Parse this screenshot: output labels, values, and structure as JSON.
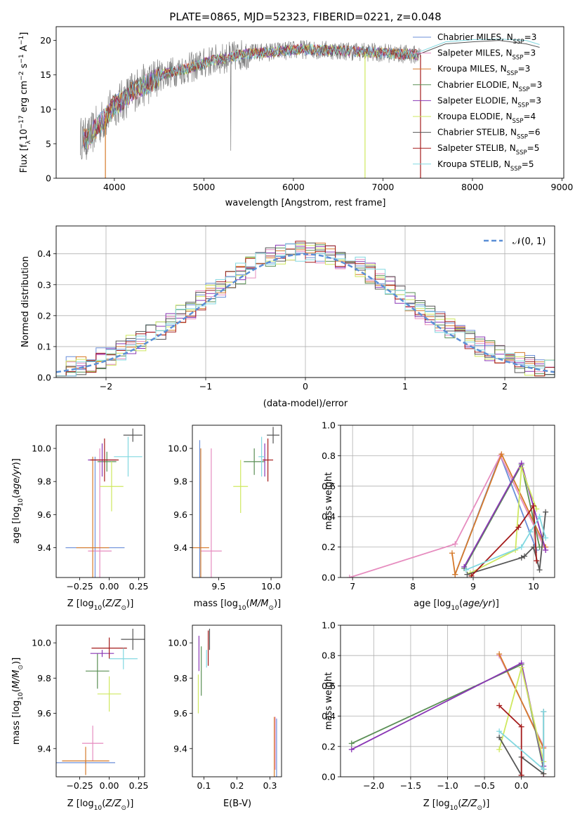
{
  "colors": {
    "Chabrier MILES": "#6b8fd9",
    "Salpeter MILES": "#e68cbf",
    "Kroupa MILES": "#d67a2a",
    "Chabrier ELODIE": "#5a8f55",
    "Salpeter ELODIE": "#8a37b5",
    "Kroupa ELODIE": "#cfe85f",
    "Chabrier STELIB": "#555555",
    "Salpeter STELIB": "#a51c1c",
    "Kroupa STELIB": "#82d8e0",
    "normal": "#5b8fd6"
  },
  "chart_data": [
    {
      "id": "spectrum",
      "type": "line",
      "title": "PLATE=0865, MJD=52323, FIBERID=0221, z=0.048",
      "xlabel": "wavelength [Angstrom, rest frame]",
      "ylabel": "Flux [f_λ10^-17 erg cm^-2 s^-1 A^-1]",
      "xlim": [
        3350,
        9020
      ],
      "ylim": [
        0,
        22
      ],
      "xticks": [
        4000,
        5000,
        6000,
        7000,
        8000,
        9000
      ],
      "yticks": [
        0,
        5,
        10,
        15,
        20
      ],
      "legend_position": "top-right",
      "legend": [
        {
          "model": "Chabrier MILES",
          "label": "Chabrier MILES, N",
          "sub": "SSP",
          "n": "=3"
        },
        {
          "model": "Salpeter MILES",
          "label": "Salpeter MILES, N",
          "sub": "SSP",
          "n": "=3"
        },
        {
          "model": "Kroupa MILES",
          "label": "Kroupa MILES, N",
          "sub": "SSP",
          "n": "=3"
        },
        {
          "model": "Chabrier ELODIE",
          "label": "Chabrier ELODIE, N",
          "sub": "SSP",
          "n": "=3"
        },
        {
          "model": "Salpeter ELODIE",
          "label": "Salpeter ELODIE, N",
          "sub": "SSP",
          "n": "=3"
        },
        {
          "model": "Kroupa ELODIE",
          "label": "Kroupa ELODIE, N",
          "sub": "SSP",
          "n": "=4"
        },
        {
          "model": "Chabrier STELIB",
          "label": "Chabrier STELIB, N",
          "sub": "SSP",
          "n": "=6"
        },
        {
          "model": "Salpeter STELIB",
          "label": "Salpeter STELIB, N",
          "sub": "SSP",
          "n": "=5"
        },
        {
          "model": "Kroupa STELIB",
          "label": "Kroupa STELIB, N",
          "sub": "SSP",
          "n": "=5"
        }
      ],
      "continuum": {
        "wavelength": [
          3600,
          3700,
          3800,
          3900,
          4000,
          4100,
          4200,
          4300,
          4400,
          4500,
          4700,
          4900,
          5100,
          5300,
          5500,
          5800,
          6100,
          6400,
          6700,
          7000,
          7400
        ],
        "flux": [
          6.0,
          5.6,
          7.4,
          8.8,
          10.6,
          11.3,
          12.6,
          13.3,
          13.9,
          14.9,
          15.6,
          16.2,
          17.1,
          17.6,
          18.1,
          18.4,
          18.7,
          18.6,
          18.4,
          18.2,
          17.9
        ]
      },
      "models_end": [
        {
          "model": "Kroupa STELIB",
          "wavelength": [
            7400,
            7700,
            8000,
            8300,
            8600,
            8750
          ],
          "flux": [
            18.3,
            19.8,
            20.1,
            20.2,
            20.0,
            19.4
          ]
        },
        {
          "model": "Chabrier STELIB",
          "wavelength": [
            7400,
            7700,
            8000,
            8300,
            8600,
            8750
          ],
          "flux": [
            18.0,
            19.5,
            19.8,
            20.0,
            19.5,
            19.0
          ]
        }
      ],
      "dropouts": [
        {
          "model": "Kroupa MILES",
          "wavelength": 3900
        },
        {
          "model": "Kroupa ELODIE",
          "wavelength": 6800
        },
        {
          "model": "Salpeter STELIB",
          "wavelength": 7420
        }
      ]
    },
    {
      "id": "residuals",
      "type": "line",
      "xlabel": "(data-model)/error",
      "ylabel": "Normed distribution",
      "xlim": [
        -2.5,
        2.5
      ],
      "ylim": [
        0,
        0.49
      ],
      "xticks": [
        -2,
        -1,
        0,
        1,
        2
      ],
      "yticks": [
        0.0,
        0.1,
        0.2,
        0.3,
        0.4
      ],
      "legend_position": "top-right",
      "legend": {
        "label": "𝒩(0, 1)"
      },
      "bin_width": 0.1
    },
    {
      "id": "age-vs-Z",
      "type": "scatter",
      "xlabel": "Z [log10(Z/Z⊙)]",
      "ylabel": "age  [log10(age/yr)]",
      "xlim": [
        -0.45,
        0.3
      ],
      "ylim": [
        9.22,
        10.14
      ],
      "xticks": [
        -0.25,
        0.0,
        0.25
      ],
      "yticks": [
        9.4,
        9.6,
        9.8,
        10.0
      ],
      "points": [
        {
          "model": "Chabrier MILES",
          "x": -0.12,
          "y": 9.4,
          "xerr": 0.25,
          "yerr": 0.55
        },
        {
          "model": "Salpeter MILES",
          "x": -0.08,
          "y": 9.38,
          "xerr": 0.1,
          "yerr": 0.62
        },
        {
          "model": "Kroupa MILES",
          "x": -0.14,
          "y": 9.4,
          "xerr": 0.14,
          "yerr": 0.55
        },
        {
          "model": "Chabrier ELODIE",
          "x": -0.02,
          "y": 9.92,
          "xerr": 0.08,
          "yerr": 0.06
        },
        {
          "model": "Salpeter ELODIE",
          "x": -0.06,
          "y": 9.93,
          "xerr": 0.12,
          "yerr": 0.1
        },
        {
          "model": "Kroupa ELODIE",
          "x": 0.02,
          "y": 9.77,
          "xerr": 0.1,
          "yerr": 0.15
        },
        {
          "model": "Chabrier STELIB",
          "x": 0.2,
          "y": 10.08,
          "xerr": 0.08,
          "yerr": 0.04
        },
        {
          "model": "Salpeter STELIB",
          "x": -0.04,
          "y": 9.93,
          "xerr": 0.12,
          "yerr": 0.13
        },
        {
          "model": "Kroupa STELIB",
          "x": 0.16,
          "y": 9.95,
          "xerr": 0.12,
          "yerr": 0.12
        }
      ]
    },
    {
      "id": "age-vs-mass",
      "type": "scatter",
      "xlabel": "mass [log10(M/M⊙)]",
      "xlim": [
        9.25,
        10.1
      ],
      "ylim": [
        9.22,
        10.14
      ],
      "xticks": [
        9.5,
        10.0
      ],
      "yticks": [
        9.4,
        9.6,
        9.8,
        10.0
      ],
      "points": [
        {
          "model": "Chabrier MILES",
          "x": 9.32,
          "y": 9.4,
          "xerr": 0.01,
          "yerr": 0.65
        },
        {
          "model": "Salpeter MILES",
          "x": 9.43,
          "y": 9.38,
          "xerr": 0.1,
          "yerr": 0.62
        },
        {
          "model": "Kroupa MILES",
          "x": 9.33,
          "y": 9.4,
          "xerr": 0.08,
          "yerr": 0.6
        },
        {
          "model": "Chabrier ELODIE",
          "x": 9.84,
          "y": 9.92,
          "xerr": 0.1,
          "yerr": 0.08
        },
        {
          "model": "Salpeter ELODIE",
          "x": 9.94,
          "y": 9.93,
          "xerr": 0.02,
          "yerr": 0.1
        },
        {
          "model": "Kroupa ELODIE",
          "x": 9.71,
          "y": 9.77,
          "xerr": 0.07,
          "yerr": 0.16
        },
        {
          "model": "Chabrier STELIB",
          "x": 10.02,
          "y": 10.08,
          "xerr": 0.06,
          "yerr": 0.05
        },
        {
          "model": "Salpeter STELIB",
          "x": 9.97,
          "y": 9.93,
          "xerr": 0.05,
          "yerr": 0.13
        },
        {
          "model": "Kroupa STELIB",
          "x": 9.91,
          "y": 9.95,
          "xerr": 0.03,
          "yerr": 0.12
        }
      ]
    },
    {
      "id": "mass-weight-vs-age",
      "type": "line",
      "xlabel": "age  [log10(age/yr)]",
      "ylabel": "mass weight",
      "xlim": [
        6.8,
        10.35
      ],
      "ylim": [
        0,
        1.0
      ],
      "xticks": [
        7,
        8,
        9,
        10
      ],
      "yticks": [
        0.0,
        0.2,
        0.4,
        0.6,
        0.8,
        1.0
      ],
      "series": [
        {
          "model": "Chabrier MILES",
          "x": [
            8.7,
            9.45,
            10.05
          ],
          "y": [
            0.02,
            0.8,
            0.18
          ]
        },
        {
          "model": "Salpeter MILES",
          "x": [
            6.95,
            8.7,
            9.45,
            10.2
          ],
          "y": [
            0.0,
            0.22,
            0.8,
            0.18
          ]
        },
        {
          "model": "Kroupa MILES",
          "x": [
            8.65,
            8.7,
            9.47,
            10.2
          ],
          "y": [
            0.16,
            0.02,
            0.81,
            0.2
          ]
        },
        {
          "model": "Chabrier ELODIE",
          "x": [
            8.85,
            9.8,
            10.1
          ],
          "y": [
            0.06,
            0.74,
            0.2
          ]
        },
        {
          "model": "Salpeter ELODIE",
          "x": [
            8.85,
            9.8,
            10.2
          ],
          "y": [
            0.07,
            0.75,
            0.18
          ]
        },
        {
          "model": "Kroupa ELODIE",
          "x": [
            8.95,
            9.7,
            9.8,
            10.05
          ],
          "y": [
            0.03,
            0.18,
            0.72,
            0.45
          ]
        },
        {
          "model": "Chabrier STELIB",
          "x": [
            8.9,
            9.8,
            9.85,
            10.0,
            10.1,
            10.2
          ],
          "y": [
            0.02,
            0.13,
            0.14,
            0.2,
            0.05,
            0.43
          ]
        },
        {
          "model": "Salpeter STELIB",
          "x": [
            8.97,
            9.75,
            10.0,
            10.05
          ],
          "y": [
            0.01,
            0.33,
            0.47,
            0.11
          ]
        },
        {
          "model": "Kroupa STELIB",
          "x": [
            8.88,
            9.8,
            9.95,
            10.1,
            10.2
          ],
          "y": [
            0.05,
            0.2,
            0.3,
            0.4,
            0.26
          ]
        }
      ]
    },
    {
      "id": "mass-vs-Z",
      "type": "scatter",
      "xlabel": "Z [log10(Z/Z⊙)]",
      "ylabel": "mass [log10(M/M⊙)]",
      "xlim": [
        -0.45,
        0.3
      ],
      "ylim": [
        9.24,
        10.1
      ],
      "xticks": [
        -0.25,
        0.0,
        0.25
      ],
      "yticks": [
        9.4,
        9.6,
        9.8,
        10.0
      ],
      "points": [
        {
          "model": "Chabrier MILES",
          "x": -0.2,
          "y": 9.32,
          "xerr": 0.25,
          "yerr": 0.01
        },
        {
          "model": "Salpeter MILES",
          "x": -0.14,
          "y": 9.43,
          "xerr": 0.09,
          "yerr": 0.1
        },
        {
          "model": "Kroupa MILES",
          "x": -0.2,
          "y": 9.33,
          "xerr": 0.2,
          "yerr": 0.08
        },
        {
          "model": "Chabrier ELODIE",
          "x": -0.1,
          "y": 9.84,
          "xerr": 0.1,
          "yerr": 0.1
        },
        {
          "model": "Salpeter ELODIE",
          "x": -0.06,
          "y": 9.94,
          "xerr": 0.1,
          "yerr": 0.02
        },
        {
          "model": "Kroupa ELODIE",
          "x": 0.0,
          "y": 9.71,
          "xerr": 0.1,
          "yerr": 0.1
        },
        {
          "model": "Chabrier STELIB",
          "x": 0.2,
          "y": 10.02,
          "xerr": 0.1,
          "yerr": 0.06
        },
        {
          "model": "Salpeter STELIB",
          "x": 0.0,
          "y": 9.97,
          "xerr": 0.15,
          "yerr": 0.06
        },
        {
          "model": "Kroupa STELIB",
          "x": 0.12,
          "y": 9.91,
          "xerr": 0.12,
          "yerr": 0.06
        }
      ]
    },
    {
      "id": "mass-vs-EBV",
      "type": "scatter",
      "xlabel": "E(B-V)",
      "xlim": [
        0.065,
        0.335
      ],
      "ylim": [
        9.24,
        10.1
      ],
      "xticks": [
        0.1,
        0.2,
        0.3
      ],
      "yticks": [
        9.4,
        9.6,
        9.8,
        10.0
      ],
      "points": [
        {
          "model": "Chabrier MILES",
          "x": 0.32,
          "y": 9.32,
          "xerr": 0.0,
          "yerr": 0.25
        },
        {
          "model": "Salpeter MILES",
          "x": 0.316,
          "y": 9.43,
          "xerr": 0.0,
          "yerr": 0.15
        },
        {
          "model": "Kroupa MILES",
          "x": 0.313,
          "y": 9.33,
          "xerr": 0.0,
          "yerr": 0.25
        },
        {
          "model": "Chabrier ELODIE",
          "x": 0.092,
          "y": 9.84,
          "xerr": 0.0,
          "yerr": 0.14
        },
        {
          "model": "Salpeter ELODIE",
          "x": 0.085,
          "y": 9.94,
          "xerr": 0.0,
          "yerr": 0.1
        },
        {
          "model": "Kroupa ELODIE",
          "x": 0.083,
          "y": 9.71,
          "xerr": 0.0,
          "yerr": 0.11
        },
        {
          "model": "Chabrier STELIB",
          "x": 0.117,
          "y": 10.02,
          "xerr": 0.0,
          "yerr": 0.06
        },
        {
          "model": "Salpeter STELIB",
          "x": 0.113,
          "y": 9.97,
          "xerr": 0.0,
          "yerr": 0.1
        },
        {
          "model": "Kroupa STELIB",
          "x": 0.108,
          "y": 9.91,
          "xerr": 0.0,
          "yerr": 0.05
        }
      ]
    },
    {
      "id": "mass-weight-vs-Z",
      "type": "line",
      "xlabel": "Z [log10(Z/Z⊙)]",
      "ylabel": "mass weight",
      "xlim": [
        -2.45,
        0.45
      ],
      "ylim": [
        0,
        1.0
      ],
      "xticks": [
        -2.0,
        -1.5,
        -1.0,
        -0.5,
        0.0
      ],
      "xticklabels": [
        "−2.0",
        "−1.5",
        "−1.0",
        "−0.5",
        "0.0"
      ],
      "yticks": [
        0.0,
        0.2,
        0.4,
        0.6,
        0.8,
        1.0
      ],
      "series": [
        {
          "model": "Chabrier MILES",
          "x": [
            -0.3,
            0.3,
            0.3
          ],
          "y": [
            0.8,
            0.2,
            0.05
          ]
        },
        {
          "model": "Salpeter MILES",
          "x": [
            -0.3,
            0.3,
            0.3
          ],
          "y": [
            0.8,
            0.2,
            0.0
          ]
        },
        {
          "model": "Kroupa MILES",
          "x": [
            -0.3,
            0.3,
            0.3
          ],
          "y": [
            0.81,
            0.19,
            0.02
          ]
        },
        {
          "model": "Chabrier ELODIE",
          "x": [
            -2.3,
            0.0,
            0.3
          ],
          "y": [
            0.22,
            0.74,
            0.05
          ]
        },
        {
          "model": "Salpeter ELODIE",
          "x": [
            -2.3,
            0.0,
            0.3
          ],
          "y": [
            0.18,
            0.75,
            0.07
          ]
        },
        {
          "model": "Kroupa ELODIE",
          "x": [
            -0.3,
            0.0,
            0.3
          ],
          "y": [
            0.18,
            0.72,
            0.1
          ]
        },
        {
          "model": "Chabrier STELIB",
          "x": [
            -0.3,
            0.0,
            0.0,
            0.3,
            0.3
          ],
          "y": [
            0.26,
            0.01,
            0.13,
            0.02,
            0.43
          ]
        },
        {
          "model": "Salpeter STELIB",
          "x": [
            -0.3,
            0.0,
            0.0
          ],
          "y": [
            0.47,
            0.33,
            0.01
          ]
        },
        {
          "model": "Kroupa STELIB",
          "x": [
            -0.3,
            0.3,
            0.3
          ],
          "y": [
            0.3,
            0.05,
            0.43
          ]
        }
      ]
    }
  ]
}
